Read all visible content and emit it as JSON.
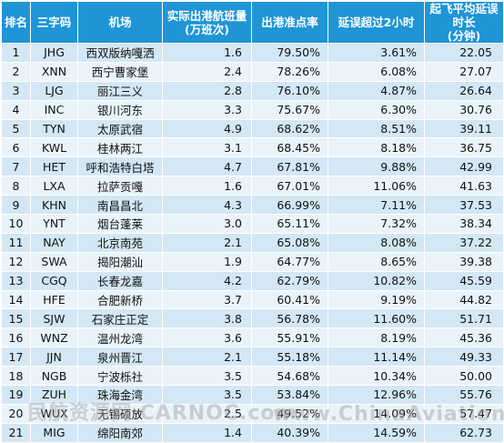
{
  "headers": [
    "排名",
    "三字码",
    "机场",
    "实际出港航班量\n(万班次)",
    "出港准点率",
    "延误超过2小时",
    "起飞平均延误时长\n(分钟)"
  ],
  "rows": [
    [
      "1",
      "JHG",
      "西双版纳嘎洒",
      "1.6",
      "79.50%",
      "3.61%",
      "22.05"
    ],
    [
      "2",
      "XNN",
      "西宁曹家堡",
      "2.4",
      "78.26%",
      "6.08%",
      "27.07"
    ],
    [
      "3",
      "LJG",
      "丽江三义",
      "2.8",
      "76.10%",
      "4.87%",
      "26.64"
    ],
    [
      "4",
      "INC",
      "银川河东",
      "3.3",
      "75.67%",
      "6.30%",
      "30.76"
    ],
    [
      "5",
      "TYN",
      "太原武宿",
      "4.9",
      "68.62%",
      "8.51%",
      "39.11"
    ],
    [
      "6",
      "KWL",
      "桂林两江",
      "3.1",
      "68.45%",
      "8.18%",
      "36.75"
    ],
    [
      "7",
      "HET",
      "呼和浩特白塔",
      "4.7",
      "67.81%",
      "9.88%",
      "42.99"
    ],
    [
      "8",
      "LXA",
      "拉萨贡嘎",
      "1.6",
      "67.01%",
      "11.06%",
      "41.63"
    ],
    [
      "9",
      "KHN",
      "南昌昌北",
      "4.3",
      "66.99%",
      "7.11%",
      "37.53"
    ],
    [
      "10",
      "YNT",
      "烟台蓬莱",
      "3.0",
      "65.11%",
      "7.32%",
      "38.34"
    ],
    [
      "11",
      "NAY",
      "北京南苑",
      "2.1",
      "65.08%",
      "8.08%",
      "37.22"
    ],
    [
      "12",
      "SWA",
      "揭阳潮汕",
      "1.9",
      "64.77%",
      "8.65%",
      "39.38"
    ],
    [
      "13",
      "CGQ",
      "长春龙嘉",
      "4.2",
      "62.79%",
      "10.82%",
      "45.59"
    ],
    [
      "14",
      "HFE",
      "合肥新桥",
      "3.7",
      "60.41%",
      "9.19%",
      "44.82"
    ],
    [
      "15",
      "SJW",
      "石家庄正定",
      "3.8",
      "56.78%",
      "11.60%",
      "51.71"
    ],
    [
      "16",
      "WNZ",
      "温州龙湾",
      "3.6",
      "55.91%",
      "8.19%",
      "45.36"
    ],
    [
      "17",
      "JJN",
      "泉州晋江",
      "2.1",
      "55.18%",
      "11.14%",
      "49.33"
    ],
    [
      "18",
      "NGB",
      "宁波栎社",
      "3.5",
      "54.68%",
      "10.34%",
      "50.00"
    ],
    [
      "19",
      "ZUH",
      "珠海金湾",
      "3.5",
      "53.84%",
      "12.96%",
      "55.76"
    ],
    [
      "20",
      "WUX",
      "无锡硕放",
      "2.5",
      "49.52%",
      "14.09%",
      "57.47"
    ],
    [
      "21",
      "MIG",
      "绵阳南郊",
      "1.4",
      "40.39%",
      "14.59%",
      "62.73"
    ]
  ],
  "watermark": {
    "left": "民航资源网 CARNOC.com",
    "right": "www.ChinaAviationDaily.com"
  }
}
